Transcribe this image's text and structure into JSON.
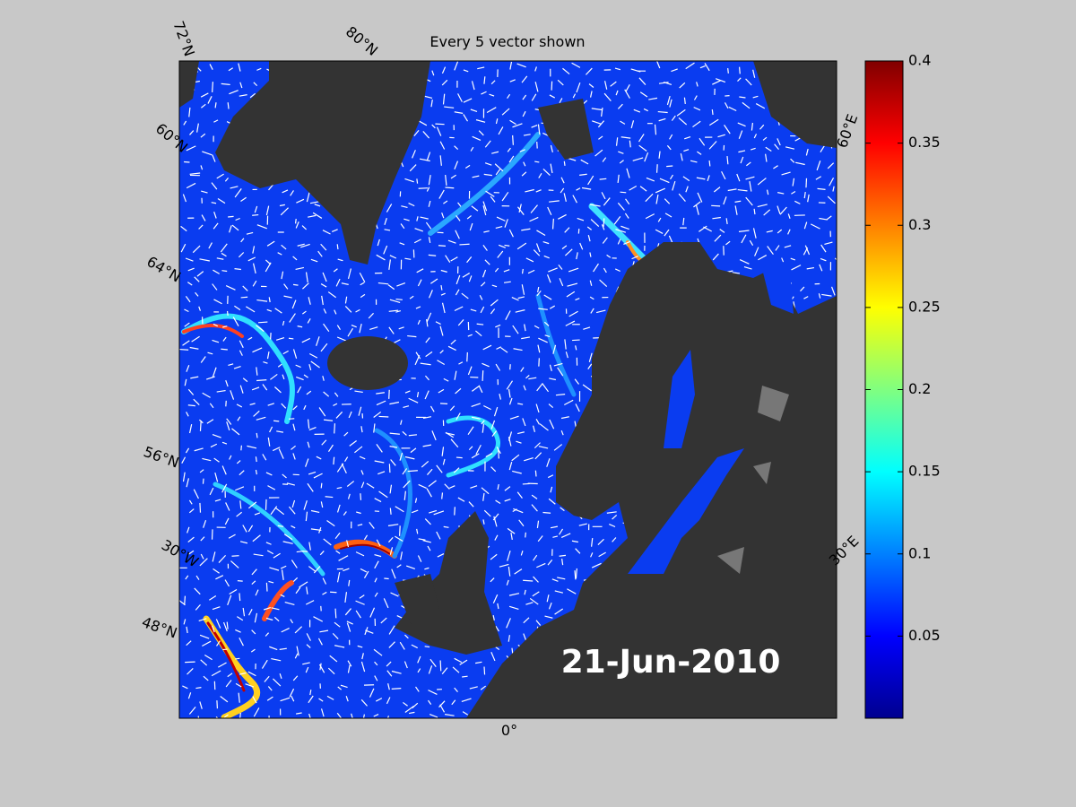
{
  "title": "Every 5 vector shown",
  "date": "21-Jun-2010",
  "graticule_labels": [
    "72°N",
    "80°N",
    "60°N",
    "64°N",
    "56°N",
    "30°W",
    "48°N",
    "0°",
    "30°E",
    "60°E"
  ],
  "colorbar": {
    "lim": [
      0,
      0.4
    ],
    "ticks": [
      0.05,
      0.1,
      0.15,
      0.2,
      0.25,
      0.3,
      0.35,
      0.4
    ],
    "colormap": [
      "#00008f",
      "#0000ff",
      "#0080ff",
      "#00ffff",
      "#80ff80",
      "#ffff00",
      "#ff8000",
      "#ff0000",
      "#800000"
    ]
  }
}
